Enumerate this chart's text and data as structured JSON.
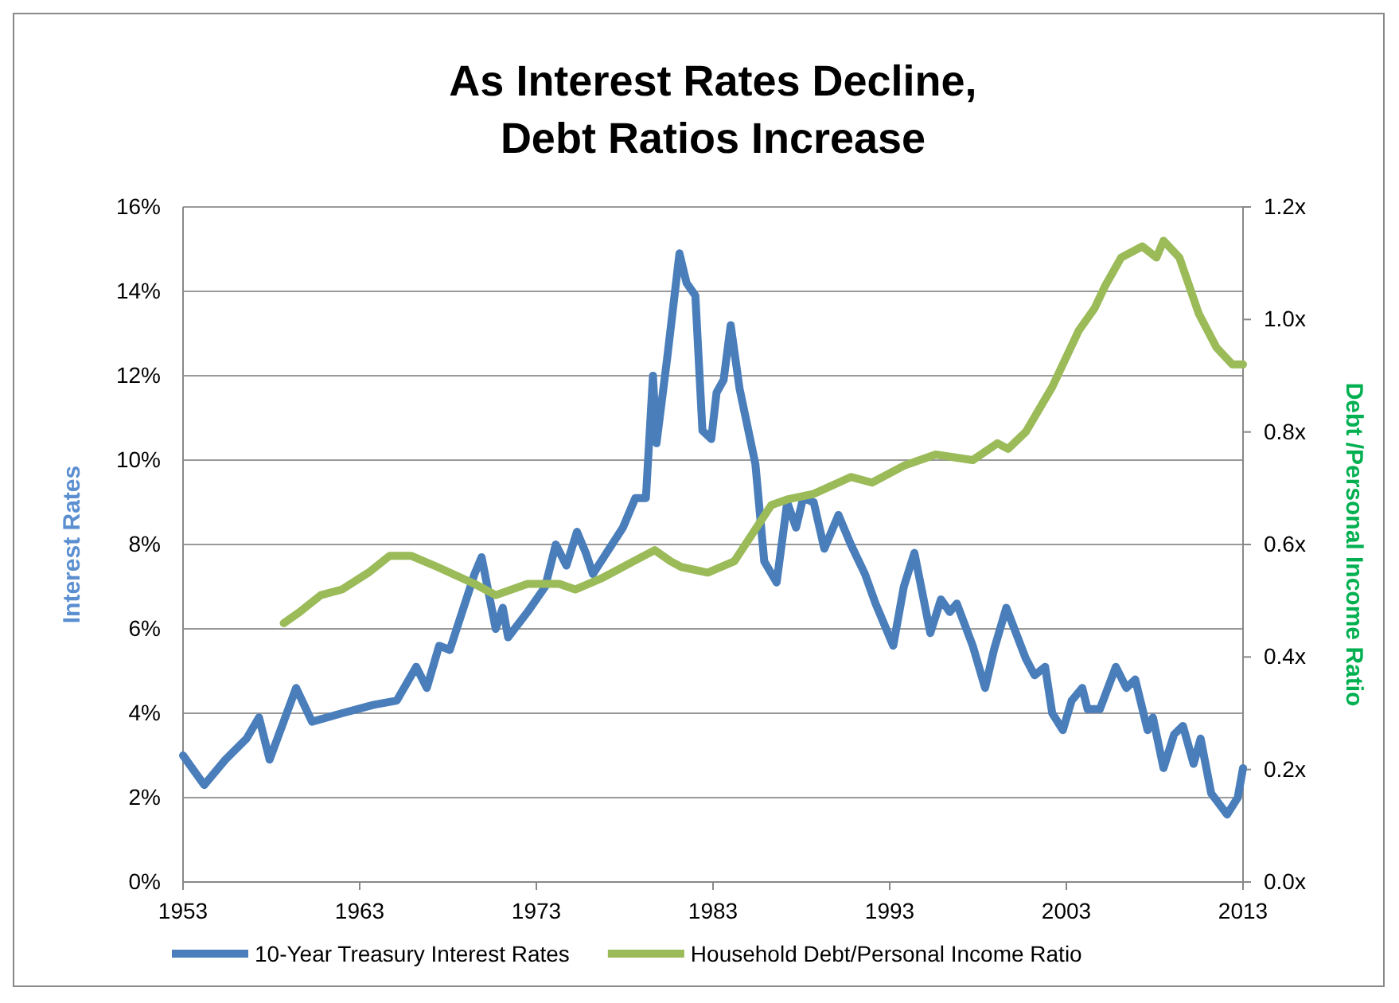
{
  "chart_data": {
    "type": "line",
    "title": "As Interest Rates Decline,\nDebt Ratios Increase",
    "ylabel": "Interest Rates",
    "y2label": "Debt /Personal Income Ratio",
    "xlim": [
      1953,
      2013
    ],
    "xticks": [
      1953,
      1963,
      1973,
      1983,
      1993,
      2003,
      2013
    ],
    "ylim": [
      0,
      16
    ],
    "yticks": [
      {
        "value": 0,
        "label": "0%"
      },
      {
        "value": 2,
        "label": "2%"
      },
      {
        "value": 4,
        "label": "4%"
      },
      {
        "value": 6,
        "label": "6%"
      },
      {
        "value": 8,
        "label": "8%"
      },
      {
        "value": 10,
        "label": "10%"
      },
      {
        "value": 12,
        "label": "12%"
      },
      {
        "value": 14,
        "label": "14%"
      },
      {
        "value": 16,
        "label": "16%"
      }
    ],
    "y2lim": [
      0,
      1.2
    ],
    "y2ticks": [
      {
        "value": 0,
        "label": "0.0x"
      },
      {
        "value": 0.2,
        "label": "0.2x"
      },
      {
        "value": 0.4,
        "label": "0.4x"
      },
      {
        "value": 0.6,
        "label": "0.6x"
      },
      {
        "value": 0.8,
        "label": "0.8x"
      },
      {
        "value": 1.0,
        "label": "1.0x"
      },
      {
        "value": 1.2,
        "label": "1.2x"
      }
    ],
    "grid": "y",
    "legend": "bottom",
    "line_style": "solid",
    "marker": "none",
    "series": [
      {
        "name": "10-Year Treasury Interest Rates",
        "color": "#4a7ebb",
        "x": [
          1953.0,
          1954.2,
          1955.4,
          1956.6,
          1957.3,
          1957.9,
          1959.4,
          1960.3,
          1962.0,
          1963.8,
          1965.1,
          1966.2,
          1966.8,
          1967.5,
          1968.1,
          1969.5,
          1969.9,
          1970.7,
          1971.1,
          1971.4,
          1972.5,
          1973.5,
          1974.1,
          1974.7,
          1975.3,
          1975.8,
          1976.2,
          1977.9,
          1978.6,
          1979.2,
          1979.6,
          1979.8,
          1980.4,
          1981.1,
          1981.5,
          1982.0,
          1982.4,
          1982.9,
          1983.2,
          1983.6,
          1984.0,
          1984.5,
          1985.4,
          1985.9,
          1986.6,
          1987.2,
          1987.7,
          1988.1,
          1988.7,
          1989.3,
          1990.1,
          1990.8,
          1991.6,
          1992.2,
          1993.2,
          1993.8,
          1994.4,
          1995.3,
          1995.9,
          1996.4,
          1996.8,
          1997.7,
          1998.4,
          1998.9,
          1999.6,
          2000.7,
          2001.2,
          2001.8,
          2002.2,
          2002.8,
          2003.3,
          2003.9,
          2004.2,
          2004.9,
          2005.8,
          2006.4,
          2006.9,
          2007.6,
          2007.9,
          2008.5,
          2009.1,
          2009.6,
          2010.2,
          2010.6,
          2011.2,
          2012.1,
          2012.7,
          2013.0
        ],
        "values": [
          3.0,
          2.3,
          2.9,
          3.4,
          3.9,
          2.9,
          4.6,
          3.8,
          4.0,
          4.2,
          4.3,
          5.1,
          4.6,
          5.6,
          5.5,
          7.3,
          7.7,
          6.0,
          6.5,
          5.8,
          6.4,
          7.0,
          8.0,
          7.5,
          8.3,
          7.8,
          7.3,
          8.4,
          9.1,
          9.1,
          12.0,
          10.4,
          12.4,
          14.9,
          14.2,
          13.9,
          10.7,
          10.5,
          11.6,
          11.9,
          13.2,
          11.7,
          9.9,
          7.6,
          7.1,
          9.0,
          8.4,
          9.1,
          9.0,
          7.9,
          8.7,
          8.0,
          7.3,
          6.6,
          5.6,
          7.0,
          7.8,
          5.9,
          6.7,
          6.4,
          6.6,
          5.6,
          4.6,
          5.5,
          6.5,
          5.3,
          4.9,
          5.1,
          4.0,
          3.6,
          4.3,
          4.6,
          4.1,
          4.1,
          5.1,
          4.6,
          4.8,
          3.6,
          3.9,
          2.7,
          3.5,
          3.7,
          2.8,
          3.4,
          2.1,
          1.6,
          2.0,
          2.7
        ]
      },
      {
        "name": "Household Debt/Personal Income Ratio",
        "color": "#9bbb59",
        "axis": "y2",
        "x": [
          1958.7,
          1959.6,
          1960.8,
          1962.0,
          1963.5,
          1964.7,
          1965.9,
          1967.4,
          1969.5,
          1970.7,
          1972.5,
          1974.3,
          1975.2,
          1976.7,
          1978.5,
          1979.7,
          1980.6,
          1981.2,
          1982.7,
          1984.2,
          1986.3,
          1987.2,
          1988.7,
          1990.8,
          1992.0,
          1993.8,
          1995.6,
          1997.7,
          1999.1,
          1999.7,
          2000.7,
          2002.2,
          2003.7,
          2004.6,
          2005.2,
          2006.1,
          2007.3,
          2008.1,
          2008.5,
          2009.4,
          2010.5,
          2011.5,
          2012.4,
          2013.0
        ],
        "values": [
          0.46,
          0.48,
          0.51,
          0.52,
          0.55,
          0.58,
          0.58,
          0.56,
          0.53,
          0.51,
          0.53,
          0.53,
          0.52,
          0.54,
          0.57,
          0.59,
          0.57,
          0.56,
          0.55,
          0.57,
          0.67,
          0.68,
          0.69,
          0.72,
          0.71,
          0.74,
          0.76,
          0.75,
          0.78,
          0.77,
          0.8,
          0.88,
          0.98,
          1.02,
          1.06,
          1.11,
          1.13,
          1.11,
          1.14,
          1.11,
          1.01,
          0.95,
          0.92,
          0.92
        ]
      }
    ]
  }
}
